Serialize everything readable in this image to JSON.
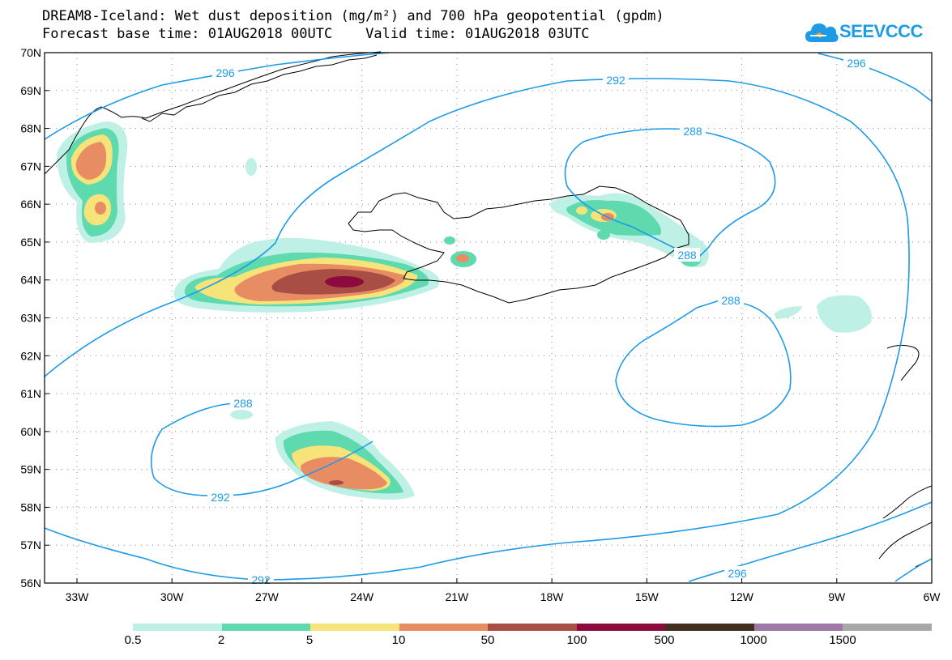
{
  "header": {
    "title_line1": "DREAM8-Iceland: Wet dust deposition (mg/m²) and 700 hPa geopotential (gpdm)",
    "title_line2": "Forecast base time: 01AUG2018 00UTC    Valid time: 01AUG2018 03UTC"
  },
  "logo": {
    "text": "SEEVCCC",
    "icon": "cloud-icon",
    "color": "#1e9be6"
  },
  "map": {
    "lat_labels": [
      "70N",
      "69N",
      "68N",
      "67N",
      "66N",
      "65N",
      "64N",
      "63N",
      "62N",
      "61N",
      "60N",
      "59N",
      "58N",
      "57N",
      "56N"
    ],
    "lon_labels": [
      "33W",
      "30W",
      "27W",
      "24W",
      "21W",
      "18W",
      "15W",
      "12W",
      "9W",
      "6W"
    ],
    "contour_color": "#1e9be6",
    "contour_labels": [
      "296",
      "292",
      "288",
      "288",
      "288",
      "288",
      "292",
      "296",
      "296"
    ]
  },
  "legend": {
    "labels": [
      "0.5",
      "2",
      "5",
      "10",
      "50",
      "100",
      "500",
      "1000",
      "1500"
    ],
    "colors": [
      "#bff0e6",
      "#5fd9ae",
      "#f6e37a",
      "#e88c64",
      "#a84e44",
      "#8c0a3c",
      "#42301e",
      "#a078a8",
      "#a8a8a8"
    ]
  }
}
